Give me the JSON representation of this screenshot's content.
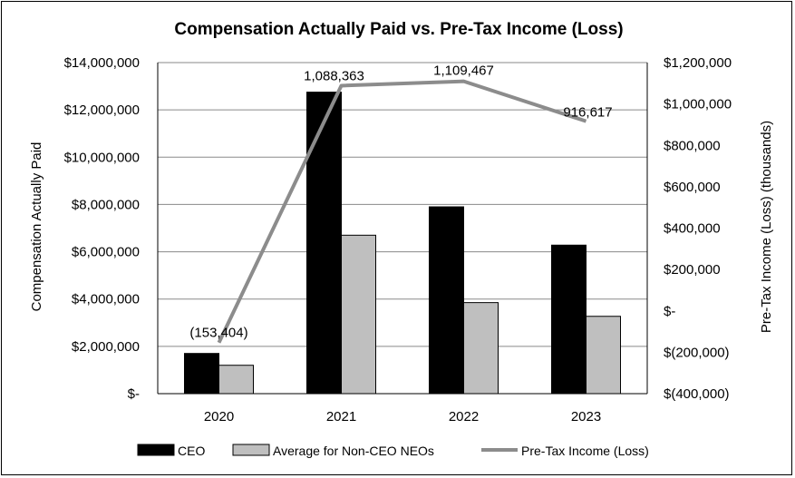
{
  "chart_data": {
    "type": "bar",
    "title": "Compensation Actually Paid vs. Pre-Tax Income (Loss)",
    "categories": [
      "2020",
      "2021",
      "2022",
      "2023"
    ],
    "series": [
      {
        "name": "CEO",
        "type": "bar",
        "axis": "left",
        "color": "#000000",
        "values": [
          1700000,
          12750000,
          7900000,
          6280000
        ]
      },
      {
        "name": "Average for Non-CEO NEOs",
        "type": "bar",
        "axis": "left",
        "color": "#bfbfbf",
        "values": [
          1200000,
          6700000,
          3850000,
          3270000
        ]
      },
      {
        "name": "Pre-Tax Income (Loss)",
        "type": "line",
        "axis": "right",
        "color": "#8c8c8c",
        "values": [
          -153404,
          1088363,
          1109467,
          916617
        ],
        "labels": [
          "(153,404)",
          "1,088,363",
          "1,109,467",
          "916,617"
        ]
      }
    ],
    "ylabel": "Compensation Actually Paid",
    "y2label": "Pre-Tax Income (Loss) (thousands)",
    "ylim": [
      0,
      14000000
    ],
    "y2lim": [
      -400000,
      1200000
    ],
    "yticks": [
      {
        "value": 0,
        "label": "$-"
      },
      {
        "value": 2000000,
        "label": "$2,000,000"
      },
      {
        "value": 4000000,
        "label": "$4,000,000"
      },
      {
        "value": 6000000,
        "label": "$6,000,000"
      },
      {
        "value": 8000000,
        "label": "$8,000,000"
      },
      {
        "value": 10000000,
        "label": "$10,000,000"
      },
      {
        "value": 12000000,
        "label": "$12,000,000"
      },
      {
        "value": 14000000,
        "label": "$14,000,000"
      }
    ],
    "y2ticks": [
      {
        "value": -400000,
        "label": "$(400,000)"
      },
      {
        "value": -200000,
        "label": "$(200,000)"
      },
      {
        "value": 0,
        "label": "$-"
      },
      {
        "value": 200000,
        "label": "$200,000"
      },
      {
        "value": 400000,
        "label": "$400,000"
      },
      {
        "value": 600000,
        "label": "$600,000"
      },
      {
        "value": 800000,
        "label": "$800,000"
      },
      {
        "value": 1000000,
        "label": "$1,000,000"
      },
      {
        "value": 1200000,
        "label": "$1,200,000"
      }
    ],
    "grid": true,
    "legend": "bottom"
  }
}
